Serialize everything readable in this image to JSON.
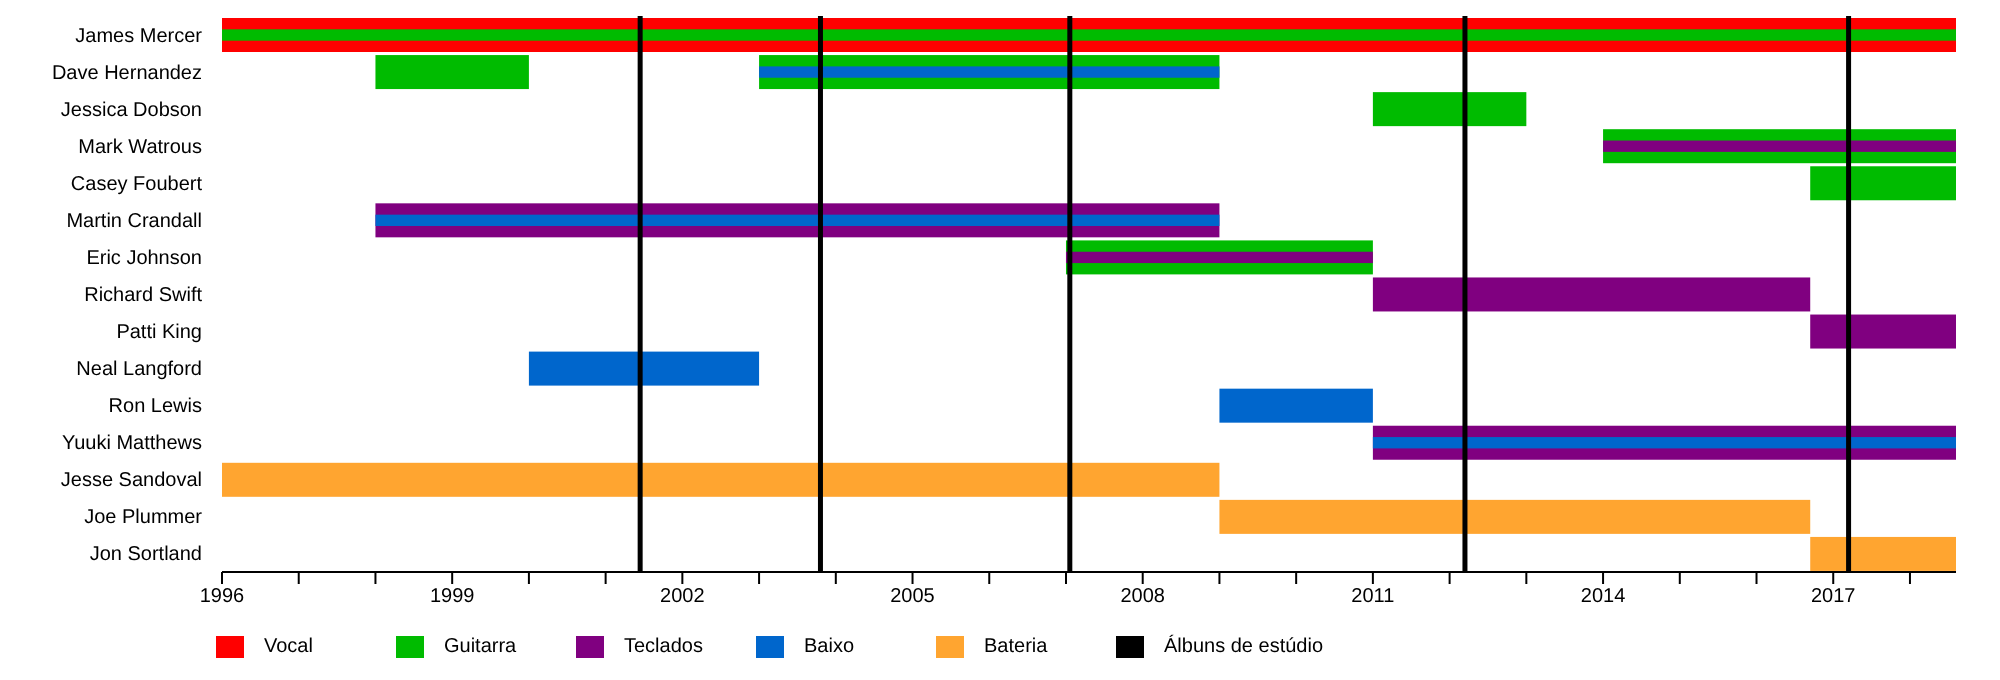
{
  "chart_data": {
    "type": "bar",
    "orientation": "horizontal",
    "categories": [
      "James Mercer",
      "Dave Hernandez",
      "Jessica Dobson",
      "Mark Watrous",
      "Casey Foubert",
      "Martin Crandall",
      "Eric Johnson",
      "Richard Swift",
      "Patti King",
      "Neal Langford",
      "Ron Lewis",
      "Yuuki Matthews",
      "Jesse Sandoval",
      "Joe Plummer",
      "Jon Sortland"
    ],
    "series": [
      {
        "name": "Vocal",
        "color": "#ff0000",
        "base": [
          1996,
          null,
          null,
          null,
          null,
          null,
          null,
          null,
          null,
          null,
          null,
          null,
          null,
          null,
          null
        ],
        "values": [
          22.6,
          null,
          null,
          null,
          null,
          null,
          null,
          null,
          null,
          null,
          null,
          null,
          null,
          null,
          null
        ]
      },
      {
        "name": "Guitarra",
        "color": "#00bb00",
        "base": [
          1996,
          2003,
          2011,
          2014,
          2016.7,
          null,
          2007,
          null,
          null,
          null,
          null,
          null,
          null,
          null,
          null
        ],
        "values": [
          22.6,
          6,
          2,
          4.6,
          1.9,
          null,
          4,
          null,
          null,
          null,
          null,
          null,
          null,
          null,
          null
        ]
      },
      {
        "name": "Teclados",
        "color": "#800080",
        "base": [
          null,
          null,
          null,
          2014,
          null,
          1998,
          2007,
          2011,
          2016.7,
          null,
          null,
          2011,
          null,
          null,
          null
        ],
        "values": [
          null,
          null,
          null,
          4.6,
          null,
          11,
          4,
          5.7,
          1.9,
          null,
          null,
          7.6,
          null,
          null,
          null
        ]
      },
      {
        "name": "Baixo",
        "color": "#0066cc",
        "base": [
          null,
          2003,
          null,
          null,
          null,
          1998,
          null,
          null,
          null,
          2000,
          2009,
          2011,
          null,
          null,
          null
        ],
        "values": [
          null,
          6,
          null,
          null,
          null,
          11,
          null,
          null,
          null,
          3,
          2,
          7.6,
          null,
          null,
          null
        ]
      },
      {
        "name": "Bateria",
        "color": "#ffa530",
        "base": [
          null,
          null,
          null,
          null,
          null,
          null,
          null,
          null,
          null,
          null,
          null,
          null,
          1996,
          2009,
          2016.7
        ],
        "values": [
          null,
          null,
          null,
          null,
          null,
          null,
          null,
          null,
          null,
          null,
          null,
          null,
          13,
          7.7,
          1.9
        ]
      },
      {
        "color": "#00bb00",
        "base": [
          null,
          1998,
          null,
          null,
          null,
          null,
          null,
          null,
          null,
          null,
          null,
          null,
          null,
          null,
          null
        ],
        "values": [
          null,
          2,
          null,
          null,
          null,
          null,
          null,
          null,
          null,
          null,
          null,
          null,
          null,
          null,
          null
        ]
      }
    ],
    "xlim": [
      1996,
      2018.6
    ],
    "xticks": [
      1996,
      {
        "value": 1997,
        "label": null
      },
      {
        "value": 1998,
        "label": null
      },
      1999,
      {
        "value": 2000,
        "label": null
      },
      {
        "value": 2001,
        "label": null
      },
      2002,
      {
        "value": 2003,
        "label": null
      },
      {
        "value": 2004,
        "label": null
      },
      2005,
      {
        "value": 2006,
        "label": null
      },
      {
        "value": 2007,
        "label": null
      },
      2008,
      {
        "value": 2009,
        "label": null
      },
      {
        "value": 2010,
        "label": null
      },
      2011,
      {
        "value": 2012,
        "label": null
      },
      {
        "value": 2013,
        "label": null
      },
      2014,
      {
        "value": 2015,
        "label": null
      },
      {
        "value": 2016,
        "label": null
      },
      2017,
      {
        "value": 2018,
        "label": null
      }
    ],
    "ref_lines": [
      {
        "axis": "x",
        "value": 2001.45,
        "label": "Álbuns de estúdio",
        "color": "#000000"
      },
      {
        "axis": "x",
        "value": 2003.8,
        "color": "#000000"
      },
      {
        "axis": "x",
        "value": 2007.05,
        "color": "#000000"
      },
      {
        "axis": "x",
        "value": 2012.2,
        "color": "#000000"
      },
      {
        "axis": "x",
        "value": 2017.2,
        "color": "#000000"
      }
    ],
    "legend": "bottom"
  }
}
